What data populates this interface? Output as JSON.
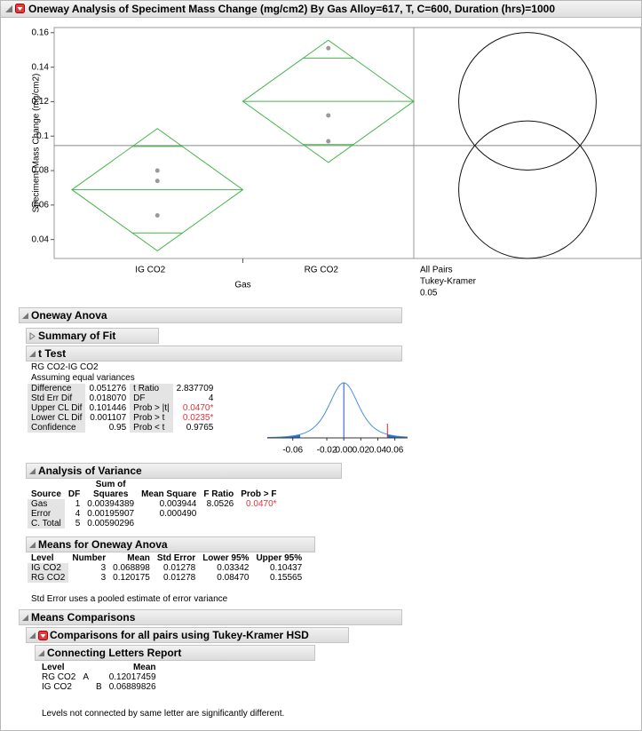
{
  "title": "Oneway Analysis of Speciment Mass Change (mg/cm2) By Gas Alloy=617, T, C=600, Duration (hrs)=1000",
  "chart_data": {
    "type": "oneway",
    "y_label": "Speciment Mass Change (mg/cm2)",
    "x_label": "Gas",
    "categories": [
      "IG CO2",
      "RG CO2"
    ],
    "points": [
      [
        0.08,
        0.074,
        0.054
      ],
      [
        0.151,
        0.112,
        0.097
      ]
    ],
    "means": [
      0.068898,
      0.120175
    ],
    "ci_lower": [
      0.03342,
      0.0847
    ],
    "ci_upper": [
      0.10437,
      0.15565
    ],
    "overlap_lower": [
      0.0438,
      0.0951
    ],
    "overlap_upper": [
      0.094,
      0.1453
    ],
    "grand_mean": 0.0945,
    "ylim": [
      0.029,
      0.163
    ],
    "yticks": [
      0.04,
      0.06,
      0.08,
      0.1,
      0.12,
      0.14,
      0.16
    ],
    "diamond_color": "#45b549",
    "point_color": "#9a9a9a",
    "grid": false,
    "comparison_circles": {
      "labels": [
        "All Pairs",
        "Tukey-Kramer",
        "0.05"
      ],
      "centers": [
        0.068898,
        0.120175
      ],
      "radius": [
        0.0399,
        0.0399
      ]
    }
  },
  "oneway_anova": {
    "heading": "Oneway Anova",
    "summary_of_fit": {
      "heading": "Summary of Fit"
    },
    "t_test": {
      "heading": "t Test",
      "comparison": "RG CO2-IG CO2",
      "assumption": "Assuming equal variances",
      "rows": [
        [
          "Difference",
          "0.051276",
          "t Ratio",
          "2.837709"
        ],
        [
          "Std Err Dif",
          "0.018070",
          "DF",
          "4"
        ],
        [
          "Upper CL Dif",
          "0.101446",
          "Prob > |t|",
          "0.0470*"
        ],
        [
          "Lower CL Dif",
          "0.001107",
          "Prob > t",
          "0.0235*"
        ],
        [
          "Confidence",
          "0.95",
          "Prob < t",
          "0.9765"
        ]
      ],
      "chart": {
        "type": "t-density",
        "xlim": [
          -0.09,
          0.075
        ],
        "xticks": [
          -0.06,
          -0.02,
          {
            "value": 0,
            "label": "0.00"
          },
          0.02,
          0.04,
          0.06
        ],
        "difference": 0.051276,
        "std_err": 0.01807,
        "df": 4,
        "curve_color": "#4a8fe0",
        "tail_color": "#1f6fd0",
        "marker_color": "#d9262e"
      }
    },
    "analysis_of_variance": {
      "heading": "Analysis of Variance",
      "columns": [
        "Source",
        "DF",
        "Sum of Squares",
        "Mean Square",
        "F Ratio",
        "Prob > F"
      ],
      "rows": [
        [
          "Gas",
          "1",
          "0.00394389",
          "0.003944",
          "8.0526",
          "0.0470*"
        ],
        [
          "Error",
          "4",
          "0.00195907",
          "0.000490"
        ],
        [
          "C. Total",
          "5",
          "0.00590296"
        ]
      ]
    },
    "means": {
      "heading": "Means for Oneway Anova",
      "columns": [
        "Level",
        "Number",
        "Mean",
        "Std Error",
        "Lower 95%",
        "Upper 95%"
      ],
      "rows": [
        [
          "IG CO2",
          "3",
          "0.068898",
          "0.01278",
          "0.03342",
          "0.10437"
        ],
        [
          "RG CO2",
          "3",
          "0.120175",
          "0.01278",
          "0.08470",
          "0.15565"
        ]
      ],
      "note": "Std Error uses a pooled estimate of error variance"
    }
  },
  "means_comparisons": {
    "heading": "Means Comparisons",
    "tukey": {
      "heading": "Comparisons for all pairs using Tukey-Kramer HSD",
      "connecting_letters": {
        "heading": "Connecting Letters Report",
        "columns": [
          "Level",
          "Mean"
        ],
        "rows": [
          [
            "RG CO2",
            "A",
            "0.12017459"
          ],
          [
            "IG CO2",
            "B",
            "0.06889826"
          ]
        ],
        "note": "Levels not connected by same letter are significantly different."
      }
    }
  }
}
